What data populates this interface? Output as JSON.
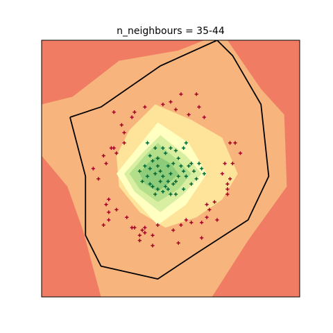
{
  "chart_data": {
    "type": "scatter",
    "title": "n_neighbours = 35-44",
    "xlabel": "",
    "ylabel": "",
    "xlim": [
      0,
      100
    ],
    "ylim": [
      0,
      100
    ],
    "axis_ticks": false,
    "grid": false,
    "legend": "none",
    "colors": {
      "background_region": "#f07c63",
      "outer_region": "#f8b47d",
      "middle_region": "#fee49a",
      "inner_region": "#ffffc1",
      "inner_green_1": "#d8efa2",
      "inner_green_2": "#b3df8a",
      "core_green": "#8dcc7a",
      "boundary_line": "#000000",
      "class_a_marker": "#a50026",
      "class_b_marker": "#006837"
    },
    "regions": [
      {
        "level": 1,
        "fill": "#f8b47d",
        "polygon": [
          [
            0,
            75
          ],
          [
            12,
            78
          ],
          [
            30,
            92
          ],
          [
            53,
            96
          ],
          [
            63,
            100
          ],
          [
            72,
            100
          ],
          [
            85,
            81
          ],
          [
            94,
            71
          ],
          [
            95,
            43
          ],
          [
            80,
            22
          ],
          [
            66,
            0
          ],
          [
            23,
            0
          ],
          [
            16,
            26
          ],
          [
            10,
            43
          ],
          [
            0,
            55
          ]
        ]
      },
      {
        "level": 2,
        "fill": "#fee49a",
        "polygon": [
          [
            44,
            75
          ],
          [
            58,
            69
          ],
          [
            70,
            62
          ],
          [
            76,
            48
          ],
          [
            70,
            38
          ],
          [
            60,
            31
          ],
          [
            48,
            27
          ],
          [
            38,
            33
          ],
          [
            30,
            43
          ],
          [
            29,
            55
          ],
          [
            34,
            65
          ]
        ]
      },
      {
        "level": 3,
        "fill": "#ffffc1",
        "polygon": [
          [
            45,
            68
          ],
          [
            57,
            60
          ],
          [
            64,
            48
          ],
          [
            56,
            36
          ],
          [
            45,
            28
          ],
          [
            34,
            40
          ],
          [
            29,
            48
          ],
          [
            37,
            58
          ]
        ]
      },
      {
        "level": 4,
        "fill": "#d8efa2",
        "polygon": [
          [
            46,
            63
          ],
          [
            56,
            55
          ],
          [
            62,
            48
          ],
          [
            55,
            40
          ],
          [
            46,
            33
          ],
          [
            36,
            41
          ],
          [
            32,
            48
          ],
          [
            39,
            56
          ]
        ]
      },
      {
        "level": 5,
        "fill": "#b3df8a",
        "polygon": [
          [
            45,
            60
          ],
          [
            53,
            53
          ],
          [
            58,
            48
          ],
          [
            53,
            42
          ],
          [
            45,
            37
          ],
          [
            38,
            42
          ],
          [
            34,
            48
          ],
          [
            40,
            55
          ]
        ]
      },
      {
        "level": 6,
        "fill": "#8dcc7a",
        "polygon": [
          [
            45,
            55
          ],
          [
            50,
            52
          ],
          [
            53,
            48
          ],
          [
            49,
            44
          ],
          [
            45,
            41
          ],
          [
            40,
            44
          ],
          [
            38,
            48
          ],
          [
            41,
            52
          ]
        ]
      }
    ],
    "decision_boundary": [
      [
        11,
        70
      ],
      [
        23,
        74
      ],
      [
        46,
        90
      ],
      [
        68,
        100
      ],
      [
        74,
        94
      ],
      [
        85,
        75
      ],
      [
        88,
        47
      ],
      [
        80,
        30
      ],
      [
        60,
        17
      ],
      [
        45,
        7
      ],
      [
        23,
        12
      ],
      [
        17,
        24
      ],
      [
        17,
        47
      ],
      [
        11,
        70
      ]
    ],
    "series": [
      {
        "marker": "+",
        "color": "#a50026",
        "points": [
          [
            28,
            72
          ],
          [
            35,
            70
          ],
          [
            31,
            67
          ],
          [
            40,
            74
          ],
          [
            47,
            75
          ],
          [
            52,
            73
          ],
          [
            57,
            71
          ],
          [
            50,
            76
          ],
          [
            60,
            79
          ],
          [
            61,
            74
          ],
          [
            63,
            70
          ],
          [
            54,
            79
          ],
          [
            36,
            72
          ],
          [
            32,
            60
          ],
          [
            28,
            58
          ],
          [
            24,
            55
          ],
          [
            25,
            52
          ],
          [
            27,
            58
          ],
          [
            22,
            46
          ],
          [
            26,
            38
          ],
          [
            25,
            36
          ],
          [
            26,
            33
          ],
          [
            29,
            34
          ],
          [
            33,
            31
          ],
          [
            35,
            27
          ],
          [
            38,
            24
          ],
          [
            39,
            26
          ],
          [
            40,
            27
          ],
          [
            45,
            28
          ],
          [
            51,
            26
          ],
          [
            54,
            28
          ],
          [
            56,
            30
          ],
          [
            58,
            29
          ],
          [
            62,
            29
          ],
          [
            64,
            31
          ],
          [
            65,
            34
          ],
          [
            67,
            37
          ],
          [
            72,
            40
          ],
          [
            72,
            42
          ],
          [
            72,
            44
          ],
          [
            73,
            46
          ],
          [
            74,
            52
          ],
          [
            75,
            60
          ],
          [
            73,
            60
          ],
          [
            77,
            56
          ],
          [
            71,
            52
          ],
          [
            70,
            48
          ],
          [
            64,
            36
          ],
          [
            40,
            25
          ],
          [
            43,
            24
          ],
          [
            32,
            64
          ],
          [
            29,
            56
          ],
          [
            36,
            27
          ],
          [
            26,
            30
          ],
          [
            20,
            50
          ],
          [
            24,
            28
          ],
          [
            38,
            22
          ],
          [
            43,
            20
          ],
          [
            53,
            21
          ],
          [
            62,
            23
          ],
          [
            68,
            30
          ]
        ]
      },
      {
        "marker": "+",
        "color": "#006837",
        "points": [
          [
            41,
            60
          ],
          [
            44,
            58
          ],
          [
            42,
            55
          ],
          [
            45,
            54
          ],
          [
            48,
            56
          ],
          [
            52,
            57
          ],
          [
            55,
            58
          ],
          [
            56,
            60
          ],
          [
            53,
            54
          ],
          [
            49,
            51
          ],
          [
            46,
            49
          ],
          [
            47,
            47
          ],
          [
            49,
            45
          ],
          [
            51,
            44
          ],
          [
            53,
            47
          ],
          [
            55,
            49
          ],
          [
            57,
            51
          ],
          [
            59,
            49
          ],
          [
            60,
            46
          ],
          [
            58,
            44
          ],
          [
            55,
            42
          ],
          [
            52,
            40
          ],
          [
            49,
            42
          ],
          [
            46,
            45
          ],
          [
            43,
            43
          ],
          [
            41,
            47
          ],
          [
            40,
            51
          ],
          [
            38,
            49
          ],
          [
            39,
            45
          ],
          [
            44,
            40
          ],
          [
            47,
            41
          ],
          [
            50,
            48
          ],
          [
            45,
            51
          ],
          [
            43,
            53
          ],
          [
            51,
            52
          ],
          [
            54,
            51
          ],
          [
            56,
            47
          ],
          [
            58,
            52
          ],
          [
            62,
            50
          ],
          [
            63,
            48
          ],
          [
            61,
            52
          ],
          [
            47,
            58
          ],
          [
            50,
            58
          ],
          [
            45,
            42
          ],
          [
            44,
            48
          ],
          [
            42,
            50
          ],
          [
            52,
            45
          ],
          [
            48,
            43
          ],
          [
            50,
            40
          ],
          [
            42,
            44
          ]
        ]
      }
    ]
  }
}
